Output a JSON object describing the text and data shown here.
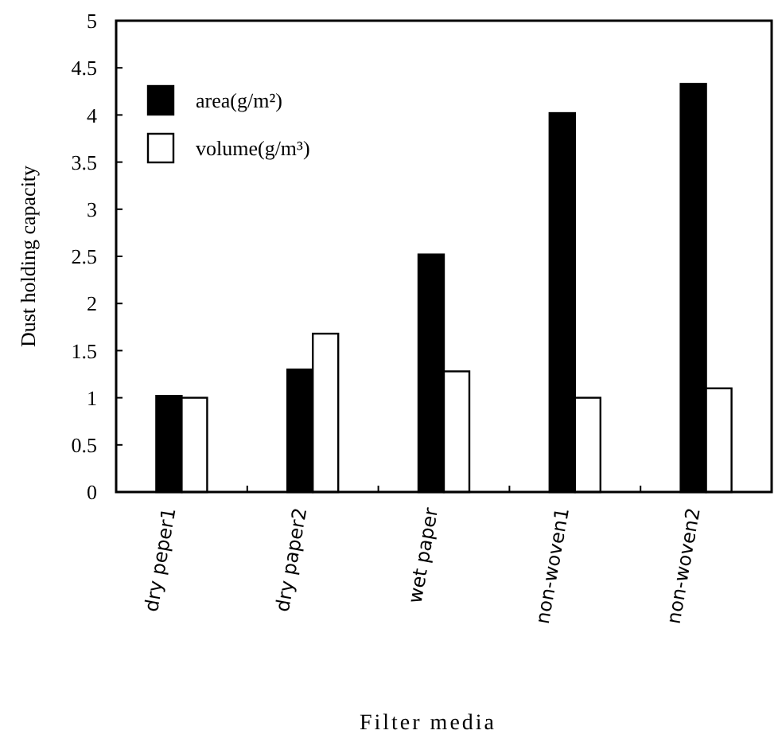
{
  "chart_data": {
    "type": "bar",
    "xlabel": "Filter media",
    "ylabel": "Dust holding capacity",
    "categories": [
      "dry peper1",
      "dry paper2",
      "wet paper",
      "non-woven1",
      "non-woven2"
    ],
    "series": [
      {
        "name": "area(g/m²)",
        "color": "#000000",
        "values": [
          1.02,
          1.3,
          2.52,
          4.02,
          4.33
        ]
      },
      {
        "name": "volume(g/m³)",
        "color": "#ffffff",
        "values": [
          1.0,
          1.68,
          1.28,
          1.0,
          1.1
        ]
      }
    ],
    "ylim": [
      0,
      5
    ],
    "yticks": [
      0,
      0.5,
      1,
      1.5,
      2,
      2.5,
      3,
      3.5,
      4,
      4.5,
      5
    ],
    "legend": "top left",
    "grid": false
  }
}
